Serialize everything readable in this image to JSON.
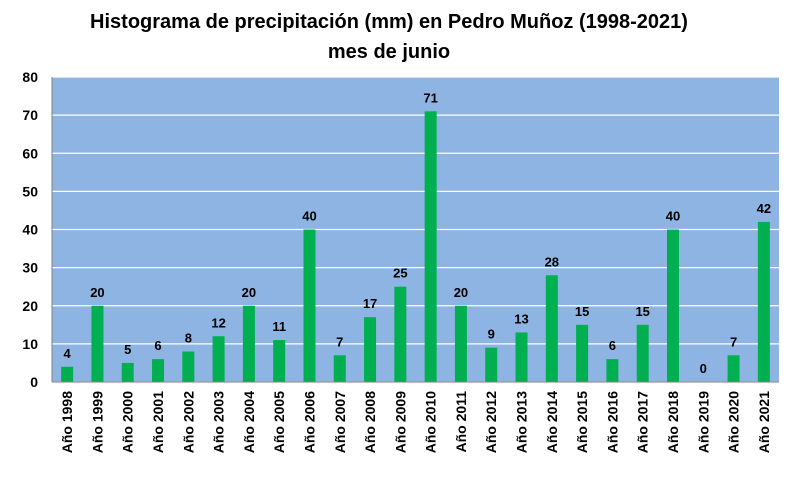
{
  "chart_data": {
    "type": "bar",
    "title": "Histograma de precipitación (mm) en Pedro Muñoz (1998-2021)",
    "subtitle": "mes de junio",
    "xlabel": "",
    "ylabel": "",
    "categories": [
      "Año 1998",
      "Año 1999",
      "Año 2000",
      "Año 2001",
      "Año 2002",
      "Año 2003",
      "Año 2004",
      "Año 2005",
      "Año 2006",
      "Año 2007",
      "Año 2008",
      "Año 2009",
      "Año 2010",
      "Año 2011",
      "Año 2012",
      "Año 2013",
      "Año 2014",
      "Año 2015",
      "Año 2016",
      "Año 2017",
      "Año 2018",
      "Año 2019",
      "Año 2020",
      "Año 2021"
    ],
    "values": [
      4,
      20,
      5,
      6,
      8,
      12,
      20,
      11,
      40,
      7,
      17,
      25,
      71,
      20,
      9,
      13,
      28,
      15,
      6,
      15,
      40,
      0,
      7,
      42
    ],
    "ylim": [
      0,
      80
    ],
    "yticks": [
      0,
      10,
      20,
      30,
      40,
      50,
      60,
      70,
      80
    ],
    "grid": true,
    "legend": "none",
    "data_labels": true,
    "colors": {
      "bar": "#00b050",
      "plot_bg": "#8db4e2",
      "grid": "#ffffff"
    }
  }
}
